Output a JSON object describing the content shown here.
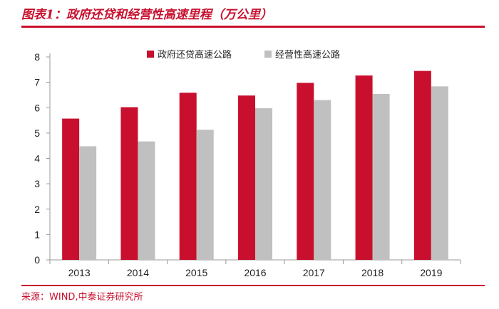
{
  "title": "图表1：政府还贷和经营性高速里程（万公里）",
  "source": "来源：WIND,中泰证券研究所",
  "colors": {
    "accent": "#c8102e",
    "series_1": "#c8102e",
    "series_2": "#c0c0c0",
    "axis": "#999999"
  },
  "chart_data": {
    "type": "bar",
    "categories": [
      "2013",
      "2014",
      "2015",
      "2016",
      "2017",
      "2018",
      "2019"
    ],
    "series": [
      {
        "name": "政府还贷高速公路",
        "values": [
          5.57,
          6.02,
          6.59,
          6.48,
          6.98,
          7.27,
          7.45
        ]
      },
      {
        "name": "经营性高速公路",
        "values": [
          4.48,
          4.67,
          5.13,
          5.98,
          6.3,
          6.54,
          6.84
        ]
      }
    ],
    "ylim": [
      0,
      8
    ],
    "yticks": [
      0,
      1,
      2,
      3,
      4,
      5,
      6,
      7,
      8
    ],
    "xlabel": "",
    "ylabel": "",
    "grid": false,
    "legend_position": "top-center"
  }
}
